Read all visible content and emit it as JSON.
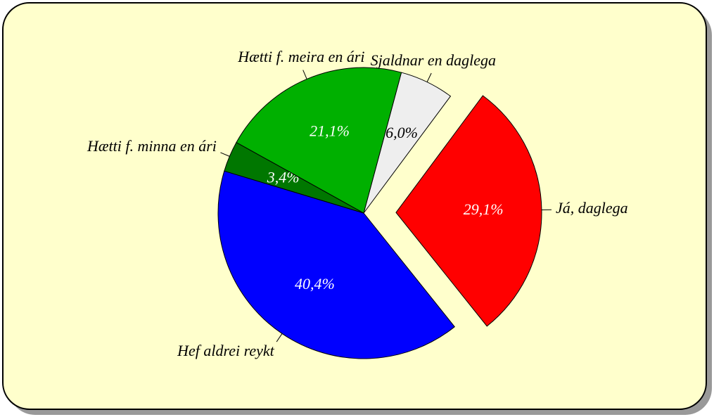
{
  "chart_data": {
    "type": "pie",
    "categories": [
      "Sjaldnar en daglega",
      "Já, daglega",
      "Hef aldrei reykt",
      "Hætti f. minna en ári",
      "Hætti f. meira en ári"
    ],
    "values": [
      6.0,
      29.1,
      40.4,
      3.4,
      21.1
    ],
    "value_labels": [
      "6,0%",
      "29,1%",
      "40,4%",
      "3,4%",
      "21,1%"
    ],
    "colors": [
      "#eeeeee",
      "#ff0000",
      "#0000ff",
      "#007700",
      "#00b000"
    ]
  }
}
